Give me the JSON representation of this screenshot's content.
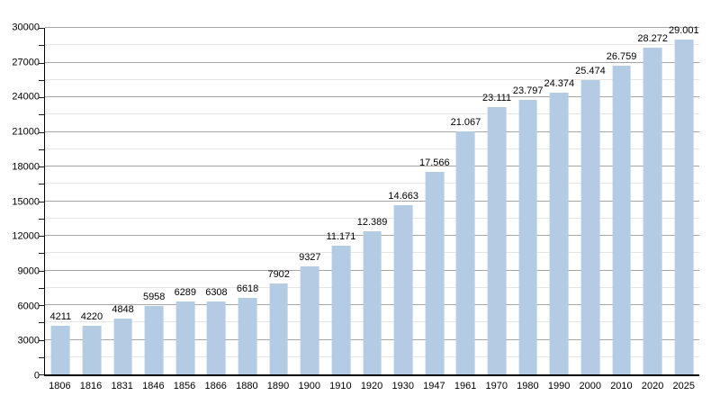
{
  "chart_data": {
    "type": "bar",
    "title": "",
    "categories": [
      "1806",
      "1816",
      "1831",
      "1846",
      "1856",
      "1866",
      "1880",
      "1890",
      "1900",
      "1910",
      "1920",
      "1930",
      "1947",
      "1961",
      "1970",
      "1980",
      "1990",
      "2000",
      "2010",
      "2020",
      "2025"
    ],
    "values": [
      4211,
      4220,
      4848,
      5958,
      6289,
      6308,
      6618,
      7902,
      9327,
      11171,
      12389,
      14663,
      17566,
      21067,
      23111,
      23797,
      24374,
      25474,
      26759,
      28272,
      29001
    ],
    "value_labels": [
      "4211",
      "4220",
      "4848",
      "5958",
      "6289",
      "6308",
      "6618",
      "7902",
      "9327",
      "11.171",
      "12.389",
      "14.663",
      "17.566",
      "21.067",
      "23.111",
      "23.797",
      "24.374",
      "25.474",
      "26.759",
      "28.272",
      "29.001"
    ],
    "xlabel": "",
    "ylabel": "",
    "ylim": [
      0,
      30000
    ],
    "y_major_step": 3000,
    "y_minor_step": 1500,
    "y_tick_labels": [
      "0",
      "3000",
      "6000",
      "9000",
      "12000",
      "15000",
      "18000",
      "21000",
      "24000",
      "27000",
      "30000"
    ],
    "grid": "on",
    "legend": "none",
    "colors": {
      "bar": "#b3cce4",
      "major_grid": "#a6a6a6",
      "minor_grid": "#e6e6e6",
      "axis": "#000000",
      "text": "#000000",
      "background": "#ffffff"
    }
  }
}
